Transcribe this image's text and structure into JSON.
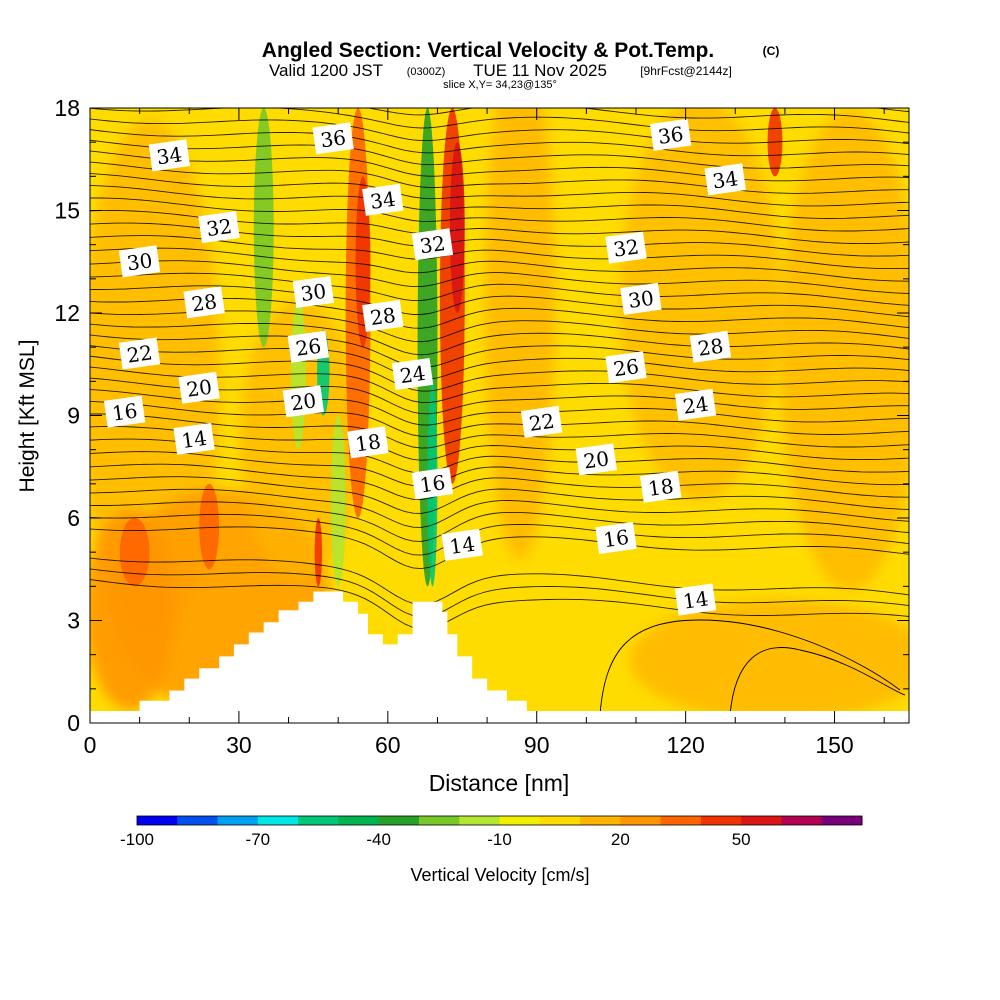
{
  "chart_data": {
    "type": "heatmap",
    "title": "Angled Section: Vertical Velocity & Pot.Temp.",
    "title_unit": "(C)",
    "subtitle_valid": "Valid 1200 JST",
    "subtitle_z": "(0300Z)",
    "subtitle_date": "TUE 11 Nov 2025",
    "subtitle_fcst": "[9hrFcst@2144z]",
    "slice_info": "slice X,Y= 34,23@135°",
    "xlabel": "Distance [nm]",
    "ylabel": "Height [Kft MSL]",
    "xlim": [
      0,
      165
    ],
    "ylim": [
      0,
      18
    ],
    "x_ticks": [
      0,
      30,
      60,
      90,
      120,
      150
    ],
    "y_ticks": [
      0,
      3,
      6,
      9,
      12,
      15,
      18
    ],
    "colorbar": {
      "label": "Vertical Velocity [cm/s]",
      "min": -100,
      "step": 10,
      "tick_labels": [
        "-100",
        "-70",
        "-40",
        "-10",
        "20",
        "50"
      ],
      "tick_values": [
        -100,
        -70,
        -40,
        -10,
        20,
        50
      ],
      "colors": [
        "#0000f0",
        "#0050f0",
        "#00a0f0",
        "#00e6e6",
        "#00c878",
        "#00b450",
        "#28a028",
        "#78c828",
        "#b4e632",
        "#f0f000",
        "#ffdc00",
        "#ffb400",
        "#ff9600",
        "#ff6400",
        "#f03200",
        "#dc1414",
        "#b40050",
        "#780078"
      ]
    },
    "terrain_profile": [
      [
        0,
        0.35
      ],
      [
        10,
        0.35
      ],
      [
        10,
        0.65
      ],
      [
        16,
        0.65
      ],
      [
        16,
        0.95
      ],
      [
        19,
        0.95
      ],
      [
        19,
        1.3
      ],
      [
        22,
        1.3
      ],
      [
        22,
        1.6
      ],
      [
        26,
        1.6
      ],
      [
        26,
        1.95
      ],
      [
        29,
        1.95
      ],
      [
        29,
        2.3
      ],
      [
        32,
        2.3
      ],
      [
        32,
        2.65
      ],
      [
        35,
        2.65
      ],
      [
        35,
        2.95
      ],
      [
        38,
        2.95
      ],
      [
        38,
        3.3
      ],
      [
        42,
        3.3
      ],
      [
        42,
        3.55
      ],
      [
        45,
        3.55
      ],
      [
        45,
        3.85
      ],
      [
        51,
        3.85
      ],
      [
        51,
        3.55
      ],
      [
        54,
        3.55
      ],
      [
        54,
        3.2
      ],
      [
        56,
        3.2
      ],
      [
        56,
        2.6
      ],
      [
        59,
        2.6
      ],
      [
        59,
        2.3
      ],
      [
        62,
        2.3
      ],
      [
        62,
        2.6
      ],
      [
        65,
        2.6
      ],
      [
        65,
        3.55
      ],
      [
        71,
        3.55
      ],
      [
        71,
        3.25
      ],
      [
        72,
        3.25
      ],
      [
        72,
        2.6
      ],
      [
        74,
        2.6
      ],
      [
        74,
        1.95
      ],
      [
        77,
        1.95
      ],
      [
        77,
        1.3
      ],
      [
        80,
        1.3
      ],
      [
        80,
        0.95
      ],
      [
        84,
        0.95
      ],
      [
        84,
        0.65
      ],
      [
        88,
        0.65
      ],
      [
        88,
        0.35
      ],
      [
        165,
        0.35
      ]
    ],
    "velocity_bands": [
      {
        "x": 35,
        "y_from": 11,
        "y_to": 18,
        "width": 4,
        "value": -30
      },
      {
        "x": 42,
        "y_from": 8,
        "y_to": 12.5,
        "width": 3,
        "value": -20
      },
      {
        "x": 47,
        "y_from": 9,
        "y_to": 11.5,
        "width": 2.5,
        "value": -60
      },
      {
        "x": 50,
        "y_from": 4,
        "y_to": 9,
        "width": 3,
        "value": -20
      },
      {
        "x": 54,
        "y_from": 6,
        "y_to": 18,
        "width": 5,
        "value": 30
      },
      {
        "x": 55,
        "y_from": 11,
        "y_to": 16,
        "width": 3,
        "value": 40
      },
      {
        "x": 68,
        "y_from": 4,
        "y_to": 18,
        "width": 4,
        "value": -40
      },
      {
        "x": 69,
        "y_from": 4,
        "y_to": 10,
        "width": 2,
        "value": -60
      },
      {
        "x": 73,
        "y_from": 7,
        "y_to": 18,
        "width": 5,
        "value": 40
      },
      {
        "x": 74,
        "y_from": 12,
        "y_to": 17,
        "width": 3,
        "value": 50
      },
      {
        "x": 9,
        "y_from": 4,
        "y_to": 6,
        "width": 6,
        "value": 30
      },
      {
        "x": 24,
        "y_from": 4.5,
        "y_to": 7,
        "width": 4,
        "value": 30
      },
      {
        "x": 46,
        "y_from": 4,
        "y_to": 6,
        "width": 1.5,
        "value": 40
      },
      {
        "x": 138,
        "y_from": 16,
        "y_to": 18,
        "width": 3,
        "value": 40
      }
    ],
    "theta_labels": [
      {
        "x": 16,
        "y": 16.6,
        "text": "34"
      },
      {
        "x": 26,
        "y": 14.5,
        "text": "32"
      },
      {
        "x": 10,
        "y": 13.5,
        "text": "30"
      },
      {
        "x": 23,
        "y": 12.3,
        "text": "28"
      },
      {
        "x": 10,
        "y": 10.8,
        "text": "22"
      },
      {
        "x": 22,
        "y": 9.8,
        "text": "20"
      },
      {
        "x": 7,
        "y": 9.1,
        "text": "16"
      },
      {
        "x": 21,
        "y": 8.3,
        "text": "14"
      },
      {
        "x": 45,
        "y": 12.6,
        "text": "30"
      },
      {
        "x": 44,
        "y": 11.0,
        "text": "26"
      },
      {
        "x": 43,
        "y": 9.4,
        "text": "20"
      },
      {
        "x": 49,
        "y": 17.1,
        "text": "36"
      },
      {
        "x": 59,
        "y": 15.3,
        "text": "34"
      },
      {
        "x": 59,
        "y": 11.9,
        "text": "28"
      },
      {
        "x": 65,
        "y": 10.2,
        "text": "24"
      },
      {
        "x": 56,
        "y": 8.2,
        "text": "18"
      },
      {
        "x": 69,
        "y": 14.0,
        "text": "32"
      },
      {
        "x": 69,
        "y": 7.0,
        "text": "16"
      },
      {
        "x": 75,
        "y": 5.2,
        "text": "14"
      },
      {
        "x": 91,
        "y": 8.8,
        "text": "22"
      },
      {
        "x": 102,
        "y": 7.7,
        "text": "20"
      },
      {
        "x": 108,
        "y": 13.9,
        "text": "32"
      },
      {
        "x": 111,
        "y": 12.4,
        "text": "30"
      },
      {
        "x": 108,
        "y": 10.4,
        "text": "26"
      },
      {
        "x": 106,
        "y": 5.4,
        "text": "16"
      },
      {
        "x": 115,
        "y": 6.9,
        "text": "18"
      },
      {
        "x": 122,
        "y": 9.3,
        "text": "24"
      },
      {
        "x": 125,
        "y": 11.0,
        "text": "28"
      },
      {
        "x": 117,
        "y": 17.2,
        "text": "36"
      },
      {
        "x": 128,
        "y": 15.9,
        "text": "34"
      },
      {
        "x": 122,
        "y": 3.6,
        "text": "14"
      }
    ]
  }
}
